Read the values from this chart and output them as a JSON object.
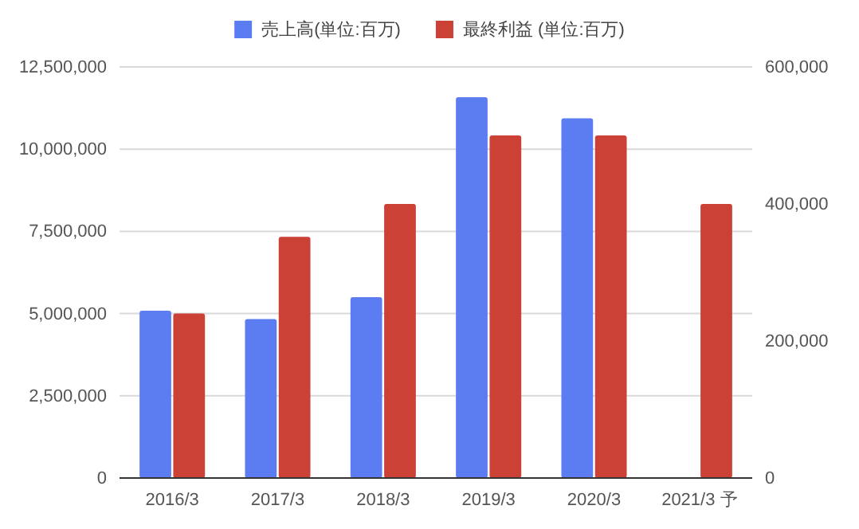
{
  "chart_data": {
    "type": "bar",
    "categories": [
      "2016/3",
      "2017/3",
      "2018/3",
      "2019/3",
      "2020/3",
      "2021/3 予"
    ],
    "series": [
      {
        "name": "売上高(単位:百万)",
        "color": "#5c7cf2",
        "values": [
          5090000,
          4830000,
          5500000,
          11580000,
          10940000,
          null
        ]
      },
      {
        "name": "最終利益 (単位:百万)",
        "color": "#cc4136",
        "axis": "y2",
        "values": [
          240000,
          352000,
          400000,
          500000,
          500000,
          400000
        ]
      }
    ],
    "ylim": [
      0,
      12500000
    ],
    "yticks": [
      {
        "value": 0,
        "label": "0"
      },
      {
        "value": 2500000,
        "label": "2,500,000"
      },
      {
        "value": 5000000,
        "label": "5,000,000"
      },
      {
        "value": 7500000,
        "label": "7,500,000"
      },
      {
        "value": 10000000,
        "label": "10,000,000"
      },
      {
        "value": 12500000,
        "label": "12,500,000"
      }
    ],
    "y2lim": [
      0,
      600000
    ],
    "y2ticks": [
      {
        "value": 0,
        "label": "0"
      },
      {
        "value": 200000,
        "label": "200,000"
      },
      {
        "value": 400000,
        "label": "400,000"
      },
      {
        "value": 600000,
        "label": "600,000"
      }
    ],
    "grid": "y",
    "legend": "top"
  }
}
